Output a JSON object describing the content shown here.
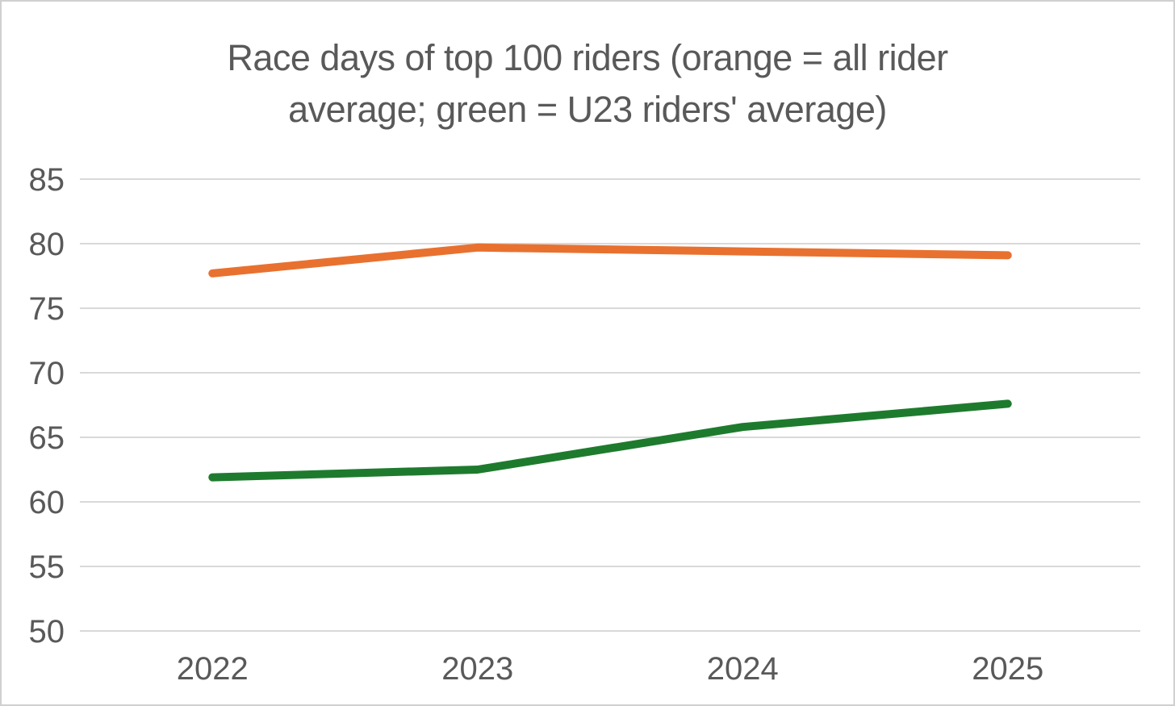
{
  "window": {
    "background_color": "#FFFFFF",
    "border_color": "#D0D0D0"
  },
  "title_lines": [
    "Race days of top 100 riders (orange = all rider",
    "average; green = U23 riders' average)"
  ],
  "chart_data": {
    "type": "line",
    "title": "Race days of top 100 riders (orange = all rider average; green = U23 riders' average)",
    "title_color": "#595959",
    "categories": [
      "2022",
      "2023",
      "2024",
      "2025"
    ],
    "series": [
      {
        "name": "All rider average",
        "color": "#E8712F",
        "values": [
          77.7,
          79.7,
          79.4,
          79.1
        ]
      },
      {
        "name": "U23 riders' average",
        "color": "#1E7B2E",
        "values": [
          61.9,
          62.5,
          65.8,
          67.6
        ]
      }
    ],
    "xlabel": "",
    "ylabel": "",
    "ylim": [
      50,
      85
    ],
    "yticks": [
      50,
      55,
      60,
      65,
      70,
      75,
      80,
      85
    ],
    "ytick_step": 5,
    "grid": true,
    "gridline_color": "#D9D9D9",
    "axis_text_color": "#595959",
    "legend": "none",
    "line_width": 10
  }
}
